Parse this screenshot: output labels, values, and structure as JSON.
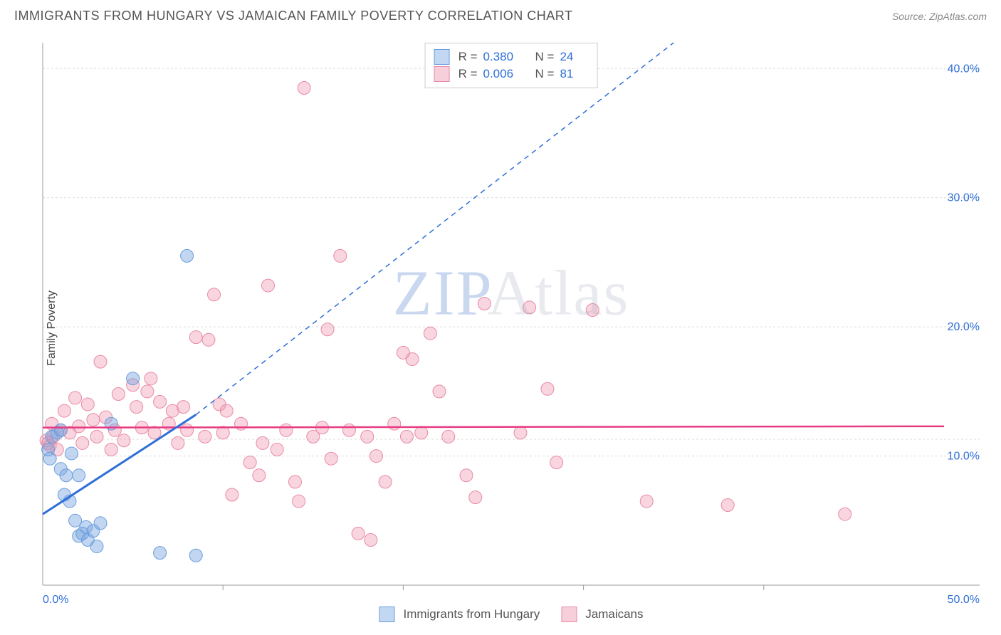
{
  "title": "IMMIGRANTS FROM HUNGARY VS JAMAICAN FAMILY POVERTY CORRELATION CHART",
  "source": "Source: ZipAtlas.com",
  "ylabel": "Family Poverty",
  "watermark_part1": "ZIP",
  "watermark_part2": "Atlas",
  "chart": {
    "type": "scatter",
    "xlim": [
      0,
      50
    ],
    "ylim": [
      0,
      42
    ],
    "xtick_labels": [
      "0.0%",
      "50.0%"
    ],
    "xtick_positions": [
      0,
      50
    ],
    "x_minor_ticks": [
      10,
      20,
      30,
      40
    ],
    "ytick_labels": [
      "10.0%",
      "20.0%",
      "30.0%",
      "40.0%"
    ],
    "ytick_positions": [
      10,
      20,
      30,
      40
    ],
    "background_color": "#ffffff",
    "grid_color": "#dcdcdc",
    "axis_color": "#999999",
    "marker_radius": 9,
    "marker_stroke_width": 1,
    "series": [
      {
        "name": "Immigrants from Hungary",
        "fill_color": "rgba(120,165,225,0.45)",
        "stroke_color": "#6a9edb",
        "swatch_fill": "#c2d7f2",
        "swatch_border": "#6a9edb",
        "r": "0.380",
        "n": "24",
        "trend": {
          "x1": 0,
          "y1": 5.5,
          "x2": 8.5,
          "y2": 13.2,
          "dashed_to_x": 35,
          "dashed_to_y": 42,
          "color": "#2e6fd8",
          "width": 3
        },
        "points": [
          [
            0.3,
            10.5
          ],
          [
            0.4,
            9.8
          ],
          [
            0.5,
            11.5
          ],
          [
            0.8,
            11.8
          ],
          [
            1.0,
            9.0
          ],
          [
            1.0,
            12.0
          ],
          [
            1.2,
            7.0
          ],
          [
            1.3,
            8.5
          ],
          [
            1.5,
            6.5
          ],
          [
            1.6,
            10.2
          ],
          [
            1.8,
            5.0
          ],
          [
            2.0,
            3.8
          ],
          [
            2.0,
            8.5
          ],
          [
            2.2,
            4.0
          ],
          [
            2.4,
            4.5
          ],
          [
            2.5,
            3.5
          ],
          [
            2.8,
            4.2
          ],
          [
            3.0,
            3.0
          ],
          [
            3.2,
            4.8
          ],
          [
            3.8,
            12.5
          ],
          [
            5.0,
            16.0
          ],
          [
            6.5,
            2.5
          ],
          [
            8.0,
            25.5
          ],
          [
            8.5,
            2.3
          ]
        ]
      },
      {
        "name": "Jamaicans",
        "fill_color": "rgba(240,150,175,0.40)",
        "stroke_color": "#e88aa5",
        "swatch_fill": "#f7cfda",
        "swatch_border": "#e88aa5",
        "r": "0.006",
        "n": "81",
        "trend": {
          "x1": 0,
          "y1": 12.2,
          "x2": 50,
          "y2": 12.3,
          "color": "#e73b82",
          "width": 2.5
        },
        "points": [
          [
            0.2,
            11.2
          ],
          [
            0.3,
            11.0
          ],
          [
            0.4,
            10.8
          ],
          [
            0.5,
            12.5
          ],
          [
            0.6,
            11.5
          ],
          [
            0.8,
            10.5
          ],
          [
            1.0,
            12.0
          ],
          [
            1.2,
            13.5
          ],
          [
            1.5,
            11.8
          ],
          [
            1.8,
            14.5
          ],
          [
            2.0,
            12.3
          ],
          [
            2.2,
            11.0
          ],
          [
            2.5,
            14.0
          ],
          [
            2.8,
            12.8
          ],
          [
            3.0,
            11.5
          ],
          [
            3.2,
            17.3
          ],
          [
            3.5,
            13.0
          ],
          [
            3.8,
            10.5
          ],
          [
            4.0,
            12.0
          ],
          [
            4.2,
            14.8
          ],
          [
            4.5,
            11.2
          ],
          [
            5.0,
            15.5
          ],
          [
            5.2,
            13.8
          ],
          [
            5.5,
            12.2
          ],
          [
            5.8,
            15.0
          ],
          [
            6.0,
            16.0
          ],
          [
            6.2,
            11.8
          ],
          [
            6.5,
            14.2
          ],
          [
            7.0,
            12.5
          ],
          [
            7.2,
            13.5
          ],
          [
            7.5,
            11.0
          ],
          [
            7.8,
            13.8
          ],
          [
            8.0,
            12.0
          ],
          [
            8.5,
            19.2
          ],
          [
            9.0,
            11.5
          ],
          [
            9.2,
            19.0
          ],
          [
            9.5,
            22.5
          ],
          [
            9.8,
            14.0
          ],
          [
            10.0,
            11.8
          ],
          [
            10.2,
            13.5
          ],
          [
            10.5,
            7.0
          ],
          [
            11.0,
            12.5
          ],
          [
            11.5,
            9.5
          ],
          [
            12.0,
            8.5
          ],
          [
            12.2,
            11.0
          ],
          [
            12.5,
            23.2
          ],
          [
            13.0,
            10.5
          ],
          [
            13.5,
            12.0
          ],
          [
            14.0,
            8.0
          ],
          [
            14.2,
            6.5
          ],
          [
            14.5,
            38.5
          ],
          [
            15.0,
            11.5
          ],
          [
            15.5,
            12.2
          ],
          [
            15.8,
            19.8
          ],
          [
            16.0,
            9.8
          ],
          [
            16.5,
            25.5
          ],
          [
            17.5,
            4.0
          ],
          [
            18.0,
            11.5
          ],
          [
            18.2,
            3.5
          ],
          [
            18.5,
            10.0
          ],
          [
            19.0,
            8.0
          ],
          [
            19.5,
            12.5
          ],
          [
            20.0,
            18.0
          ],
          [
            20.2,
            11.5
          ],
          [
            20.5,
            17.5
          ],
          [
            21.0,
            11.8
          ],
          [
            21.5,
            19.5
          ],
          [
            22.0,
            15.0
          ],
          [
            22.5,
            11.5
          ],
          [
            23.5,
            8.5
          ],
          [
            24.0,
            6.8
          ],
          [
            26.5,
            11.8
          ],
          [
            27.0,
            21.5
          ],
          [
            28.0,
            15.2
          ],
          [
            28.5,
            9.5
          ],
          [
            30.5,
            21.3
          ],
          [
            33.5,
            6.5
          ],
          [
            38.0,
            6.2
          ],
          [
            44.5,
            5.5
          ],
          [
            24.5,
            21.8
          ],
          [
            17.0,
            12.0
          ]
        ]
      }
    ]
  },
  "legend": {
    "series1_label": "Immigrants from Hungary",
    "series2_label": "Jamaicans"
  }
}
